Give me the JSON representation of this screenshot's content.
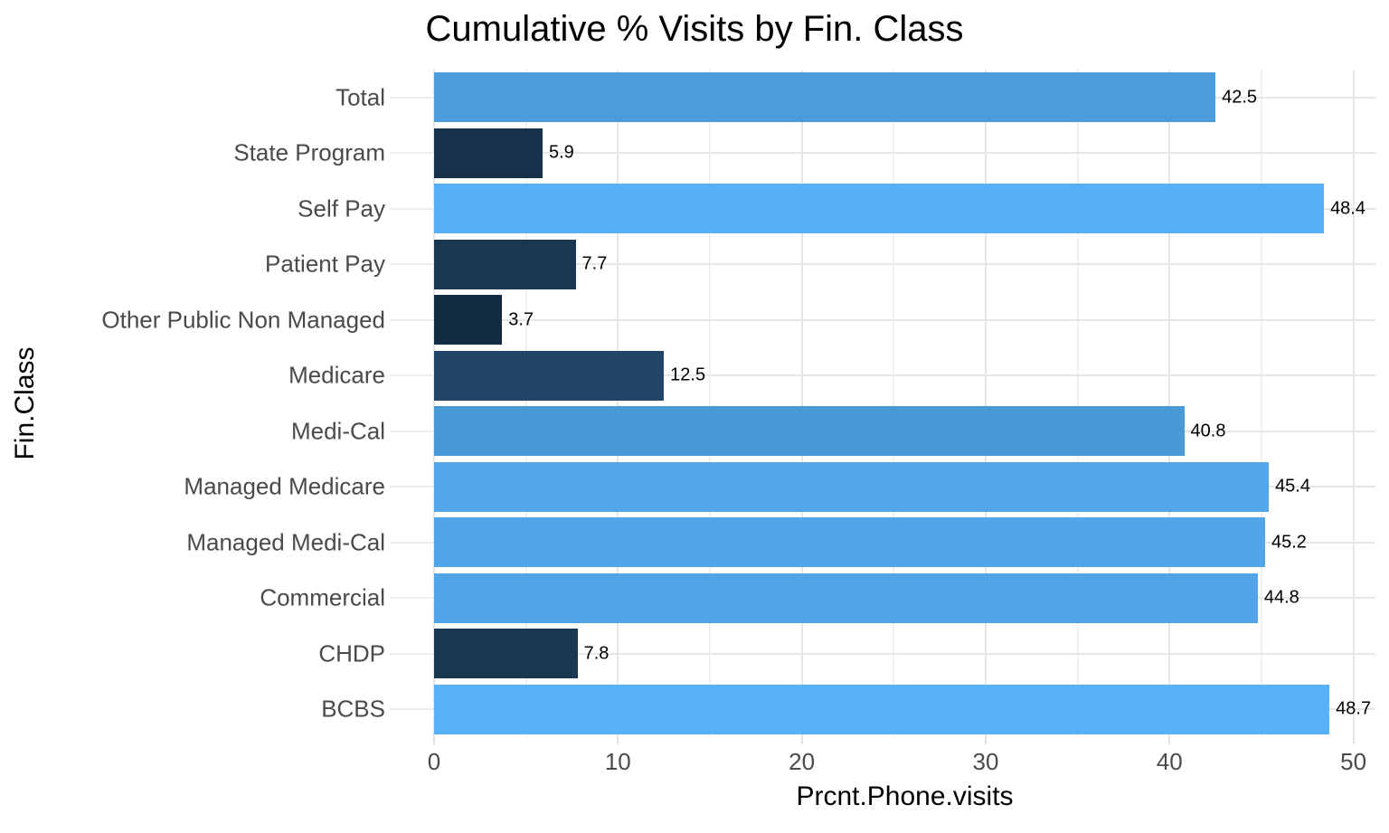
{
  "title": "Cumulative % Visits by Fin. Class",
  "x_axis": {
    "label": "Prcnt.Phone.visits",
    "tick_labels": [
      "0",
      "10",
      "20",
      "30",
      "40",
      "50"
    ],
    "tick_values": [
      0,
      10,
      20,
      30,
      40,
      50
    ],
    "minor_tick_values": [
      5,
      15,
      25,
      35,
      45
    ],
    "max_extent": 51.2
  },
  "y_axis": {
    "label": "Fin.Class"
  },
  "chart_data": {
    "type": "bar",
    "orientation": "horizontal",
    "title": "Cumulative % Visits by Fin. Class",
    "xlabel": "Prcnt.Phone.visits",
    "ylabel": "Fin.Class",
    "xlim": [
      0,
      51.2
    ],
    "x_ticks": [
      0,
      10,
      20,
      30,
      40,
      50
    ],
    "grid": true,
    "legend": false,
    "categories": [
      "Total",
      "State Program",
      "Self Pay",
      "Patient Pay",
      "Other Public Non Managed",
      "Medicare",
      "Medi-Cal",
      "Managed Medicare",
      "Managed Medi-Cal",
      "Commercial",
      "CHDP",
      "BCBS"
    ],
    "values": [
      42.5,
      5.9,
      48.4,
      7.7,
      3.7,
      12.5,
      40.8,
      45.4,
      45.2,
      44.8,
      7.8,
      48.7
    ],
    "value_labels": [
      "42.5",
      "5.9",
      "48.4",
      "7.7",
      "3.7",
      "12.5",
      "40.8",
      "45.4",
      "45.2",
      "44.8",
      "7.8",
      "48.7"
    ],
    "bar_colors": [
      "#4C9CDB",
      "#17314B",
      "#56B0F6",
      "#193750",
      "#132B43",
      "#204566",
      "#4A99D7",
      "#52A6EA",
      "#51A5E9",
      "#50A4E7",
      "#193751",
      "#56B1F7"
    ],
    "fill_scale": {
      "low": "#132B43",
      "high": "#56B1F7",
      "mapped_to": "value"
    }
  },
  "colors": {
    "background": "#FFFFFF",
    "title_text": "#000000",
    "axis_title_text": "#000000",
    "axis_tick_text": "#4A4A4A",
    "value_label_text": "#000000",
    "grid_major": "#E6E6E6",
    "grid_minor": "#F0F0F0",
    "axis_tick_mark": "#ECECEC"
  }
}
